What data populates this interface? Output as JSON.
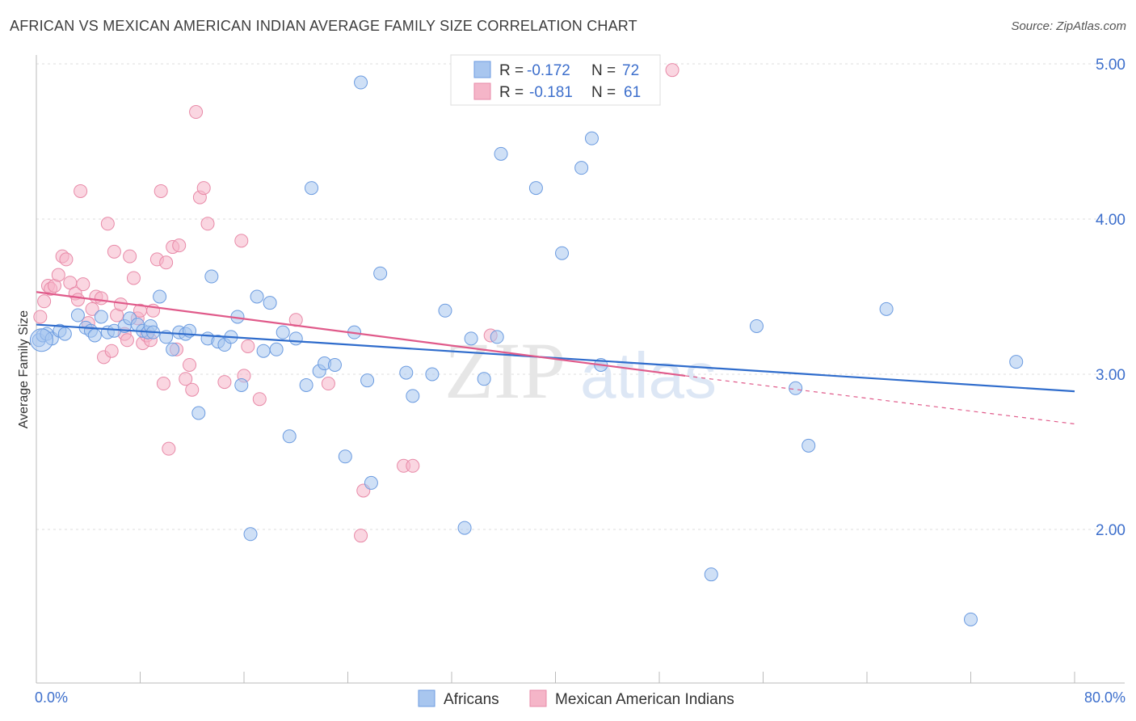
{
  "header": {
    "title": "AFRICAN VS MEXICAN AMERICAN INDIAN AVERAGE FAMILY SIZE CORRELATION CHART",
    "source": "Source: ZipAtlas.com"
  },
  "legend": {
    "r_label": "R =",
    "n_label": "N =",
    "rows": [
      {
        "r": "-0.172",
        "n": "72",
        "color": "#a8c6ef"
      },
      {
        "r": "-0.181",
        "n": "61",
        "color": "#f5b5c8"
      }
    ]
  },
  "watermark": {
    "zip": "ZIP",
    "atlas": "atlas"
  },
  "chart_data": {
    "type": "scatter",
    "title": "AFRICAN VS MEXICAN AMERICAN INDIAN AVERAGE FAMILY SIZE CORRELATION CHART",
    "xlabel": "",
    "ylabel": "Average Family Size",
    "xlim": [
      0,
      80
    ],
    "ylim": [
      1.0,
      5.2
    ],
    "x_tick_labels": [
      "0.0%",
      "80.0%"
    ],
    "y_ticks": [
      2.0,
      3.0,
      4.0,
      5.0
    ],
    "y_tick_labels": [
      "2.00",
      "3.00",
      "4.00",
      "5.00"
    ],
    "grid": true,
    "legend_position": "top-center",
    "series": [
      {
        "name": "Africans",
        "color": "#a8c6ef",
        "stroke": "#6b9be0",
        "r": -0.172,
        "n": 72,
        "trend": {
          "x": [
            0,
            80
          ],
          "y": [
            3.32,
            2.89
          ],
          "color": "#2f6ccc"
        },
        "points": [
          [
            0.2,
            3.22
          ],
          [
            0.5,
            3.25
          ],
          [
            0.8,
            3.26
          ],
          [
            1.2,
            3.23
          ],
          [
            1.8,
            3.28
          ],
          [
            2.2,
            3.26
          ],
          [
            3.2,
            3.38
          ],
          [
            3.8,
            3.3
          ],
          [
            4.2,
            3.28
          ],
          [
            4.5,
            3.25
          ],
          [
            5.0,
            3.37
          ],
          [
            5.5,
            3.27
          ],
          [
            6.0,
            3.28
          ],
          [
            6.8,
            3.31
          ],
          [
            7.2,
            3.36
          ],
          [
            7.8,
            3.32
          ],
          [
            8.2,
            3.28
          ],
          [
            8.6,
            3.27
          ],
          [
            8.8,
            3.31
          ],
          [
            9.0,
            3.27
          ],
          [
            9.5,
            3.5
          ],
          [
            10.0,
            3.24
          ],
          [
            10.5,
            3.16
          ],
          [
            11.0,
            3.27
          ],
          [
            11.5,
            3.26
          ],
          [
            11.8,
            3.28
          ],
          [
            12.5,
            2.75
          ],
          [
            13.2,
            3.23
          ],
          [
            13.5,
            3.63
          ],
          [
            14.0,
            3.21
          ],
          [
            14.5,
            3.19
          ],
          [
            15.0,
            3.24
          ],
          [
            15.5,
            3.37
          ],
          [
            15.8,
            2.93
          ],
          [
            16.5,
            1.97
          ],
          [
            17.0,
            3.5
          ],
          [
            17.5,
            3.15
          ],
          [
            18.0,
            3.46
          ],
          [
            18.5,
            3.16
          ],
          [
            19.0,
            3.27
          ],
          [
            19.5,
            2.6
          ],
          [
            20.0,
            3.23
          ],
          [
            20.8,
            2.93
          ],
          [
            21.2,
            4.2
          ],
          [
            21.8,
            3.02
          ],
          [
            22.2,
            3.07
          ],
          [
            23.0,
            3.06
          ],
          [
            23.8,
            2.47
          ],
          [
            24.5,
            3.27
          ],
          [
            25.0,
            4.88
          ],
          [
            25.5,
            2.96
          ],
          [
            25.8,
            2.3
          ],
          [
            26.5,
            3.65
          ],
          [
            28.5,
            3.01
          ],
          [
            29.0,
            2.86
          ],
          [
            30.5,
            3.0
          ],
          [
            31.5,
            3.41
          ],
          [
            33.0,
            2.01
          ],
          [
            33.5,
            3.23
          ],
          [
            34.5,
            2.97
          ],
          [
            35.5,
            3.24
          ],
          [
            35.8,
            4.42
          ],
          [
            38.5,
            4.2
          ],
          [
            40.5,
            3.78
          ],
          [
            42.0,
            4.33
          ],
          [
            42.8,
            4.52
          ],
          [
            43.5,
            3.06
          ],
          [
            52.0,
            1.71
          ],
          [
            55.5,
            3.31
          ],
          [
            58.5,
            2.91
          ],
          [
            59.5,
            2.54
          ],
          [
            65.5,
            3.42
          ],
          [
            72.0,
            1.42
          ],
          [
            75.5,
            3.08
          ]
        ]
      },
      {
        "name": "Mexican American Indians",
        "color": "#f5b5c8",
        "stroke": "#e88aa8",
        "r": -0.181,
        "n": 61,
        "trend": {
          "x": [
            0,
            50
          ],
          "y": [
            3.53,
            2.99
          ],
          "dashed_to": [
            80,
            2.68
          ],
          "color": "#e05a8a"
        },
        "points": [
          [
            0.3,
            3.37
          ],
          [
            0.6,
            3.47
          ],
          [
            0.9,
            3.57
          ],
          [
            1.1,
            3.55
          ],
          [
            1.4,
            3.57
          ],
          [
            1.7,
            3.64
          ],
          [
            2.0,
            3.76
          ],
          [
            2.3,
            3.74
          ],
          [
            2.6,
            3.59
          ],
          [
            3.0,
            3.52
          ],
          [
            3.2,
            3.48
          ],
          [
            3.4,
            4.18
          ],
          [
            3.6,
            3.58
          ],
          [
            4.0,
            3.33
          ],
          [
            4.3,
            3.42
          ],
          [
            4.6,
            3.5
          ],
          [
            5.0,
            3.49
          ],
          [
            5.2,
            3.11
          ],
          [
            5.5,
            3.97
          ],
          [
            5.8,
            3.15
          ],
          [
            6.0,
            3.79
          ],
          [
            6.2,
            3.38
          ],
          [
            6.5,
            3.45
          ],
          [
            6.8,
            3.26
          ],
          [
            7.0,
            3.22
          ],
          [
            7.2,
            3.76
          ],
          [
            7.5,
            3.62
          ],
          [
            7.8,
            3.36
          ],
          [
            8.0,
            3.41
          ],
          [
            8.2,
            3.2
          ],
          [
            8.5,
            3.25
          ],
          [
            8.8,
            3.22
          ],
          [
            9.0,
            3.41
          ],
          [
            9.3,
            3.74
          ],
          [
            9.6,
            4.18
          ],
          [
            9.8,
            2.94
          ],
          [
            10.0,
            3.72
          ],
          [
            10.2,
            2.52
          ],
          [
            10.5,
            3.82
          ],
          [
            10.8,
            3.16
          ],
          [
            11.0,
            3.83
          ],
          [
            11.5,
            2.97
          ],
          [
            11.8,
            3.06
          ],
          [
            12.0,
            2.9
          ],
          [
            12.3,
            4.69
          ],
          [
            12.6,
            4.14
          ],
          [
            12.9,
            4.2
          ],
          [
            13.2,
            3.97
          ],
          [
            14.5,
            2.95
          ],
          [
            15.8,
            3.86
          ],
          [
            16.0,
            2.99
          ],
          [
            16.3,
            3.18
          ],
          [
            17.2,
            2.84
          ],
          [
            20.0,
            3.35
          ],
          [
            22.5,
            2.94
          ],
          [
            25.0,
            1.96
          ],
          [
            25.2,
            2.25
          ],
          [
            28.3,
            2.41
          ],
          [
            29.0,
            2.41
          ],
          [
            35.0,
            3.25
          ],
          [
            49.0,
            4.96
          ]
        ]
      }
    ]
  },
  "bottom_legend": [
    {
      "label": "Africans",
      "color": "#a8c6ef"
    },
    {
      "label": "Mexican American Indians",
      "color": "#f5b5c8"
    }
  ]
}
